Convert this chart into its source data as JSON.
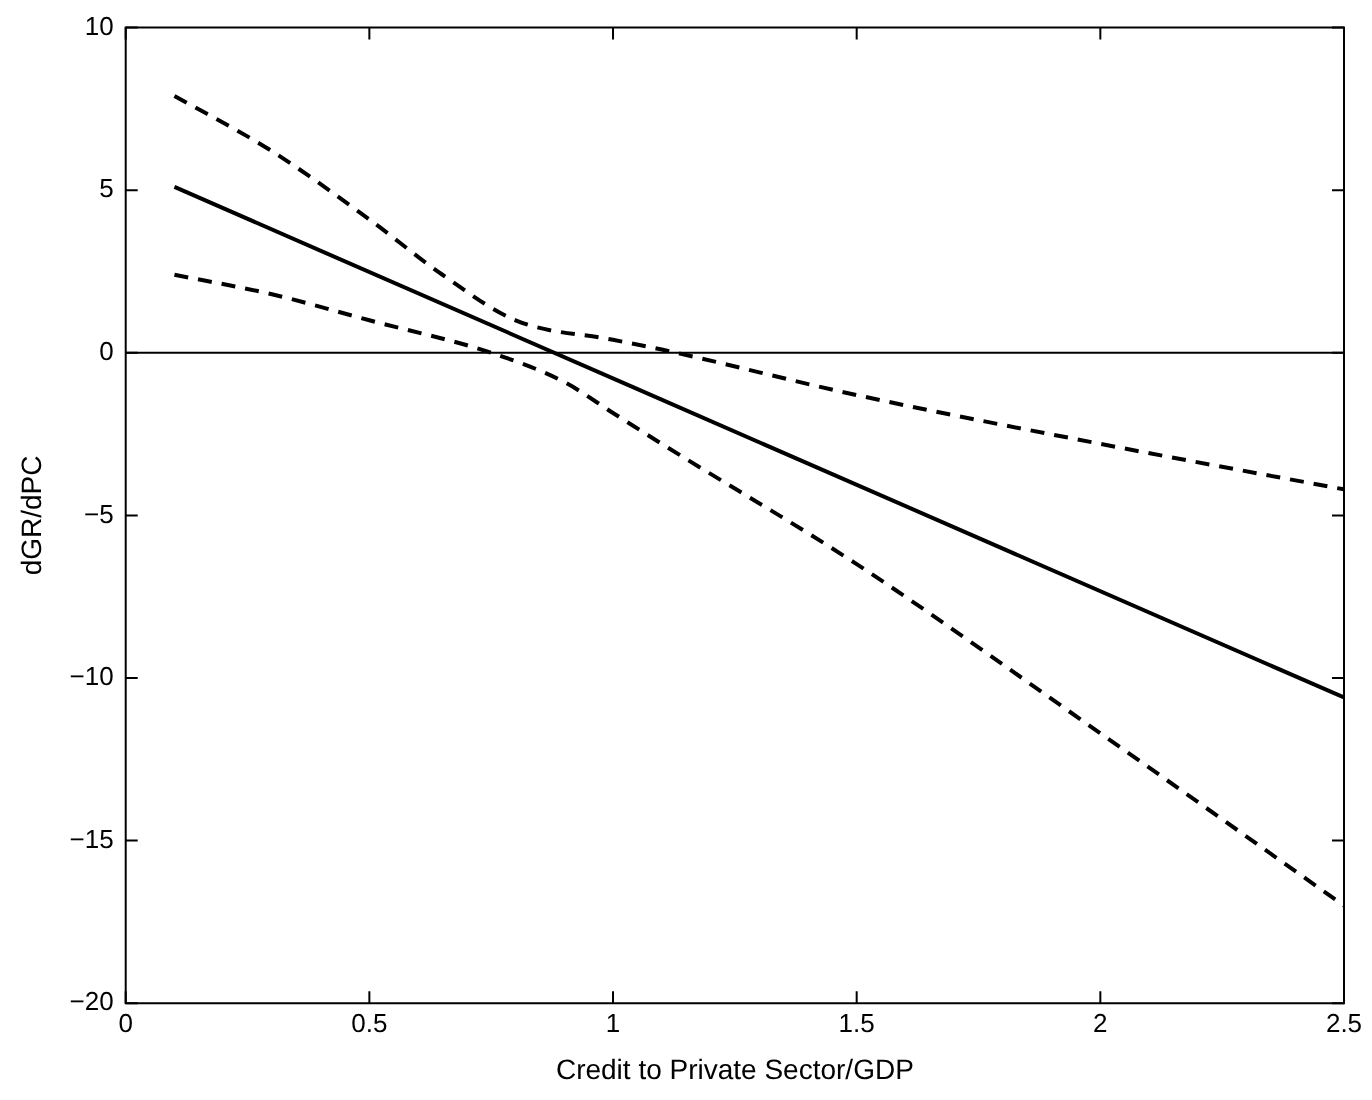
{
  "chart_data": {
    "type": "line",
    "xlabel": "Credit to Private Sector/GDP",
    "ylabel": "dGR/dPC",
    "xlim": [
      0,
      2.5
    ],
    "xticks": [
      0,
      0.5,
      1,
      1.5,
      2,
      2.5
    ],
    "ylim": [
      -20,
      10
    ],
    "yticks": [
      {
        "value": -20,
        "label": "−20"
      },
      {
        "value": -15,
        "label": "−15"
      },
      {
        "value": -10,
        "label": "−10"
      },
      {
        "value": -5,
        "label": "−5"
      },
      0,
      5,
      10
    ],
    "grid": false,
    "legend": false,
    "ref_lines": [
      {
        "axis": "y",
        "value": 0,
        "color": "#000000",
        "line_style": "solid"
      }
    ],
    "series": [
      {
        "color": "#000000",
        "line_style": "solid",
        "x": [
          0.1,
          2.5
        ],
        "values": [
          5.1,
          -10.6
        ]
      },
      {
        "color": "#000000",
        "line_style": "dashed",
        "x": [
          0.1,
          0.3,
          0.5,
          0.65,
          0.8,
          1.0,
          1.1,
          1.5,
          2.0,
          2.5
        ],
        "values": [
          7.9,
          6.2,
          4.1,
          2.4,
          1.0,
          0.4,
          0.1,
          -1.3,
          -2.8,
          -4.2
        ]
      },
      {
        "color": "#000000",
        "line_style": "dashed",
        "x": [
          0.1,
          0.3,
          0.5,
          0.75,
          0.9,
          1.0,
          1.1,
          1.5,
          2.0,
          2.5
        ],
        "values": [
          2.4,
          1.8,
          1.0,
          0,
          -0.9,
          -1.85,
          -2.8,
          -6.5,
          -11.7,
          -17.0
        ]
      }
    ]
  }
}
